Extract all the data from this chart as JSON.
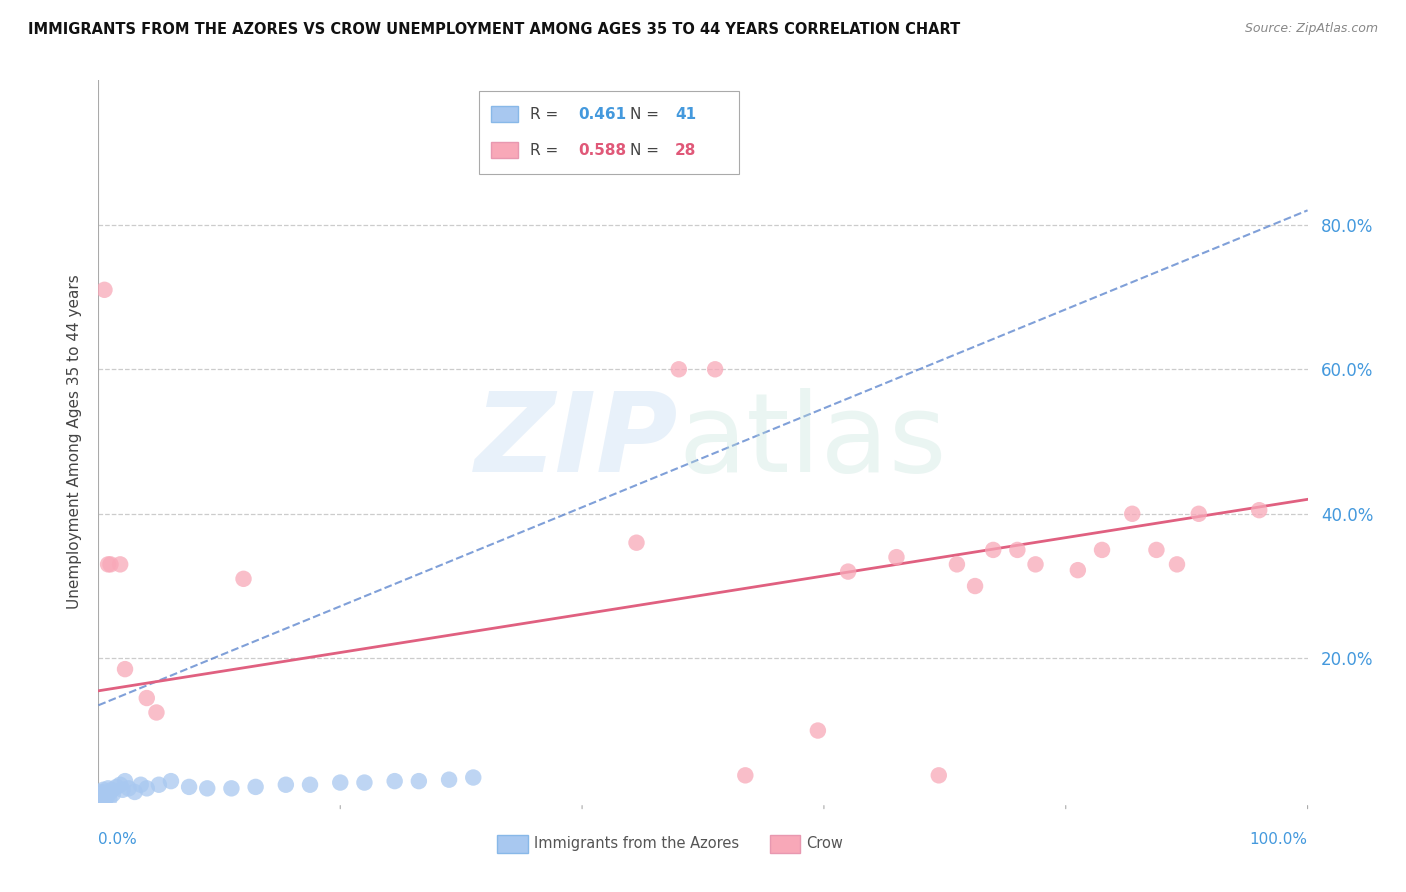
{
  "title": "IMMIGRANTS FROM THE AZORES VS CROW UNEMPLOYMENT AMONG AGES 35 TO 44 YEARS CORRELATION CHART",
  "source": "Source: ZipAtlas.com",
  "ylabel": "Unemployment Among Ages 35 to 44 years",
  "background_color": "#ffffff",
  "series1_color": "#a8c8f0",
  "series2_color": "#f8a8b8",
  "trendline1_color": "#5580cc",
  "trendline2_color": "#e06080",
  "series1_name": "Immigrants from the Azores",
  "series2_name": "Crow",
  "legend1_R": "0.461",
  "legend1_N": "41",
  "legend2_R": "0.588",
  "legend2_N": "28",
  "azores_x": [
    0.001,
    0.001,
    0.001,
    0.002,
    0.002,
    0.002,
    0.003,
    0.003,
    0.004,
    0.004,
    0.005,
    0.005,
    0.006,
    0.007,
    0.008,
    0.009,
    0.01,
    0.011,
    0.012,
    0.015,
    0.018,
    0.02,
    0.022,
    0.025,
    0.03,
    0.035,
    0.04,
    0.05,
    0.06,
    0.075,
    0.09,
    0.11,
    0.13,
    0.155,
    0.175,
    0.2,
    0.22,
    0.245,
    0.265,
    0.29,
    0.31
  ],
  "azores_y": [
    0.002,
    0.005,
    0.01,
    0.003,
    0.008,
    0.015,
    0.004,
    0.012,
    0.006,
    0.018,
    0.002,
    0.014,
    0.01,
    0.008,
    0.02,
    0.005,
    0.015,
    0.018,
    0.012,
    0.022,
    0.025,
    0.018,
    0.03,
    0.02,
    0.015,
    0.025,
    0.02,
    0.025,
    0.03,
    0.022,
    0.02,
    0.02,
    0.022,
    0.025,
    0.025,
    0.028,
    0.028,
    0.03,
    0.03,
    0.032,
    0.035
  ],
  "crow_x": [
    0.005,
    0.008,
    0.01,
    0.018,
    0.022,
    0.04,
    0.048,
    0.12,
    0.445,
    0.48,
    0.51,
    0.535,
    0.595,
    0.62,
    0.66,
    0.695,
    0.71,
    0.725,
    0.74,
    0.76,
    0.775,
    0.81,
    0.83,
    0.855,
    0.875,
    0.892,
    0.91,
    0.96
  ],
  "crow_y": [
    0.71,
    0.33,
    0.33,
    0.33,
    0.185,
    0.145,
    0.125,
    0.31,
    0.36,
    0.6,
    0.6,
    0.038,
    0.1,
    0.32,
    0.34,
    0.038,
    0.33,
    0.3,
    0.35,
    0.35,
    0.33,
    0.322,
    0.35,
    0.4,
    0.35,
    0.33,
    0.4,
    0.405
  ],
  "trendline1_x0": 0.0,
  "trendline1_x1": 1.0,
  "trendline1_y0": 0.135,
  "trendline1_y1": 0.82,
  "trendline2_x0": 0.0,
  "trendline2_x1": 1.0,
  "trendline2_y0": 0.155,
  "trendline2_y1": 0.42,
  "xlim": [
    0.0,
    1.0
  ],
  "ylim": [
    0.0,
    1.0
  ],
  "ytick_positions": [
    0.2,
    0.4,
    0.6,
    0.8
  ],
  "ytick_labels": [
    "20.0%",
    "40.0%",
    "60.0%",
    "80.0%"
  ],
  "xtick_labels_left": "0.0%",
  "xtick_labels_right": "100.0%"
}
